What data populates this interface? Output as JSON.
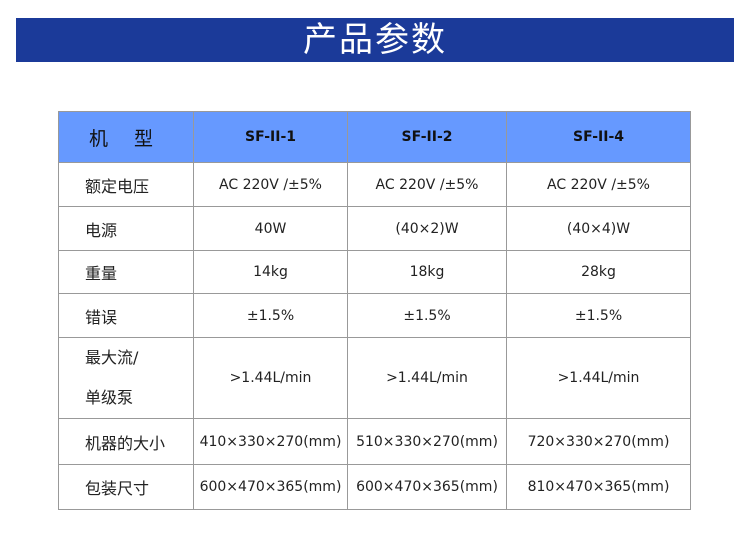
{
  "title": "产品参数",
  "header": {
    "label": "机 型",
    "models": [
      "SF-II-1",
      "SF-II-2",
      "SF-II-4"
    ]
  },
  "rows": [
    {
      "label": "额定电压",
      "values": [
        "AC 220V /±5%",
        "AC 220V /±5%",
        "AC 220V /±5%"
      ]
    },
    {
      "label": "电源",
      "values": [
        "40W",
        "(40×2)W",
        "(40×4)W"
      ]
    },
    {
      "label": "重量",
      "values": [
        "14kg",
        "18kg",
        "28kg"
      ]
    },
    {
      "label": "错误",
      "values": [
        "±1.5%",
        "±1.5%",
        "±1.5%"
      ]
    },
    {
      "label_line1": "最大流/",
      "label_line2": "单级泵",
      "values": [
        ">1.44L/min",
        ">1.44L/min",
        ">1.44L/min"
      ]
    },
    {
      "label": "机器的大小",
      "values": [
        "410×330×270(mm)",
        "510×330×270(mm)",
        "720×330×270(mm)"
      ]
    },
    {
      "label": "包装尺寸",
      "values": [
        "600×470×365(mm)",
        "600×470×365(mm)",
        "810×470×365(mm)"
      ]
    }
  ],
  "colors": {
    "title_bar": "#1b3a99",
    "header": "#6699ff"
  }
}
